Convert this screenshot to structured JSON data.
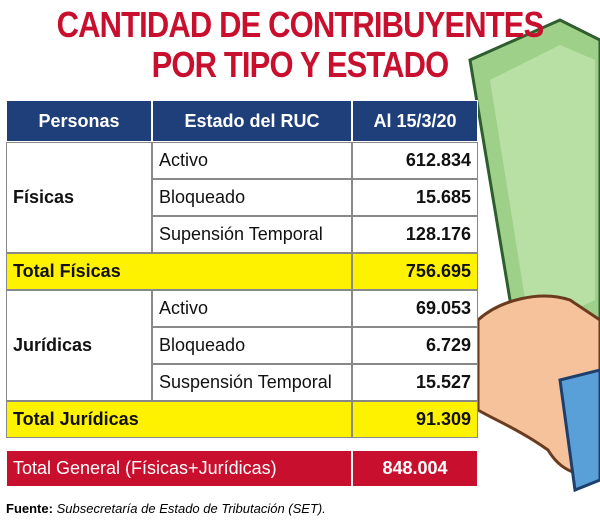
{
  "title": [
    "CANTIDAD DE CONTRIBUYENTES",
    "POR TIPO Y ESTADO"
  ],
  "table": {
    "header": [
      "Personas",
      "Estado del RUC",
      "Al 15/3/20"
    ],
    "groups": [
      {
        "name": "Físicas",
        "rows": [
          [
            "Activo",
            "612.834"
          ],
          [
            "Bloqueado",
            "15.685"
          ],
          [
            "Supensión Temporal",
            "128.176"
          ]
        ],
        "total": [
          "Total Físicas",
          "756.695"
        ]
      },
      {
        "name": "Jurídicas",
        "rows": [
          [
            "Activo",
            "69.053"
          ],
          [
            "Bloqueado",
            "6.729"
          ],
          [
            "Suspensión Temporal",
            "15.527"
          ]
        ],
        "total": [
          "Total Jurídicas",
          "91.309"
        ]
      }
    ],
    "grand_total": [
      "Total General (Físicas+Jurídicas)",
      "848.004"
    ]
  },
  "source": {
    "label": "Fuente:",
    "text": "Subsecretaría de Estado de Tributación (SET)."
  }
}
